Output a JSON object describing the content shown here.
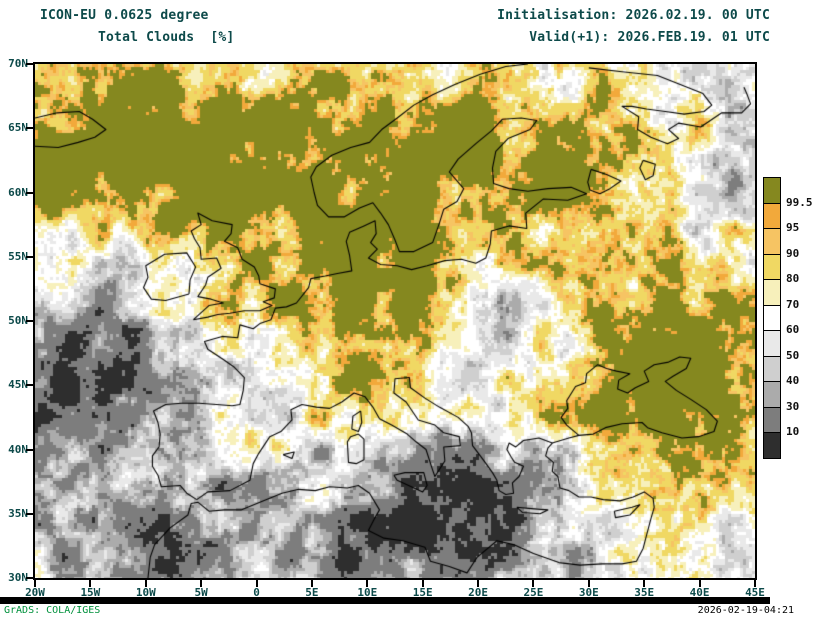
{
  "header": {
    "model_line": "ICON-EU 0.0625 degree",
    "field_line": "Total Clouds  [%]",
    "init_line": "Initialisation: 2026.02.19. 00 UTC",
    "valid_line": "Valid(+1): 2026.FEB.19. 01 UTC"
  },
  "footer": {
    "left": "GrADS: COLA/IGES",
    "right": "2026-02-19-04:21"
  },
  "map": {
    "lon_min": -20,
    "lon_max": 45,
    "lat_min": 30,
    "lat_max": 70
  },
  "axes": {
    "lat_labels": [
      "70N",
      "65N",
      "60N",
      "55N",
      "50N",
      "45N",
      "40N",
      "35N",
      "30N"
    ],
    "lat_values": [
      70,
      65,
      60,
      55,
      50,
      45,
      40,
      35,
      30
    ],
    "lon_labels": [
      "20W",
      "15W",
      "10W",
      "5W",
      "0",
      "5E",
      "10E",
      "15E",
      "20E",
      "25E",
      "30E",
      "35E",
      "40E",
      "45E"
    ],
    "lon_values": [
      -20,
      -15,
      -10,
      -5,
      0,
      5,
      10,
      15,
      20,
      25,
      30,
      35,
      40,
      45
    ]
  },
  "legend": {
    "tick_labels": [
      "99.5",
      "95",
      "90",
      "80",
      "70",
      "60",
      "50",
      "40",
      "30",
      "10"
    ],
    "thresholds": [
      10,
      30,
      40,
      50,
      60,
      70,
      80,
      90,
      95,
      99.5
    ],
    "band_colors_top_to_bottom": [
      "#85881f",
      "#f2a93b",
      "#f6c463",
      "#f0d863",
      "#f7f0bb",
      "#ffffff",
      "#e9e9e9",
      "#cfcfcf",
      "#ababab",
      "#7d7d7d",
      "#2e2e2e"
    ]
  },
  "colors": {
    "title_text": "#0d4a4a",
    "axis_text": "#0d4a4a",
    "legend_text": "#111111",
    "grads_credit": "#00913c",
    "timestamp_text": "#000000",
    "coastline": "#000000"
  }
}
